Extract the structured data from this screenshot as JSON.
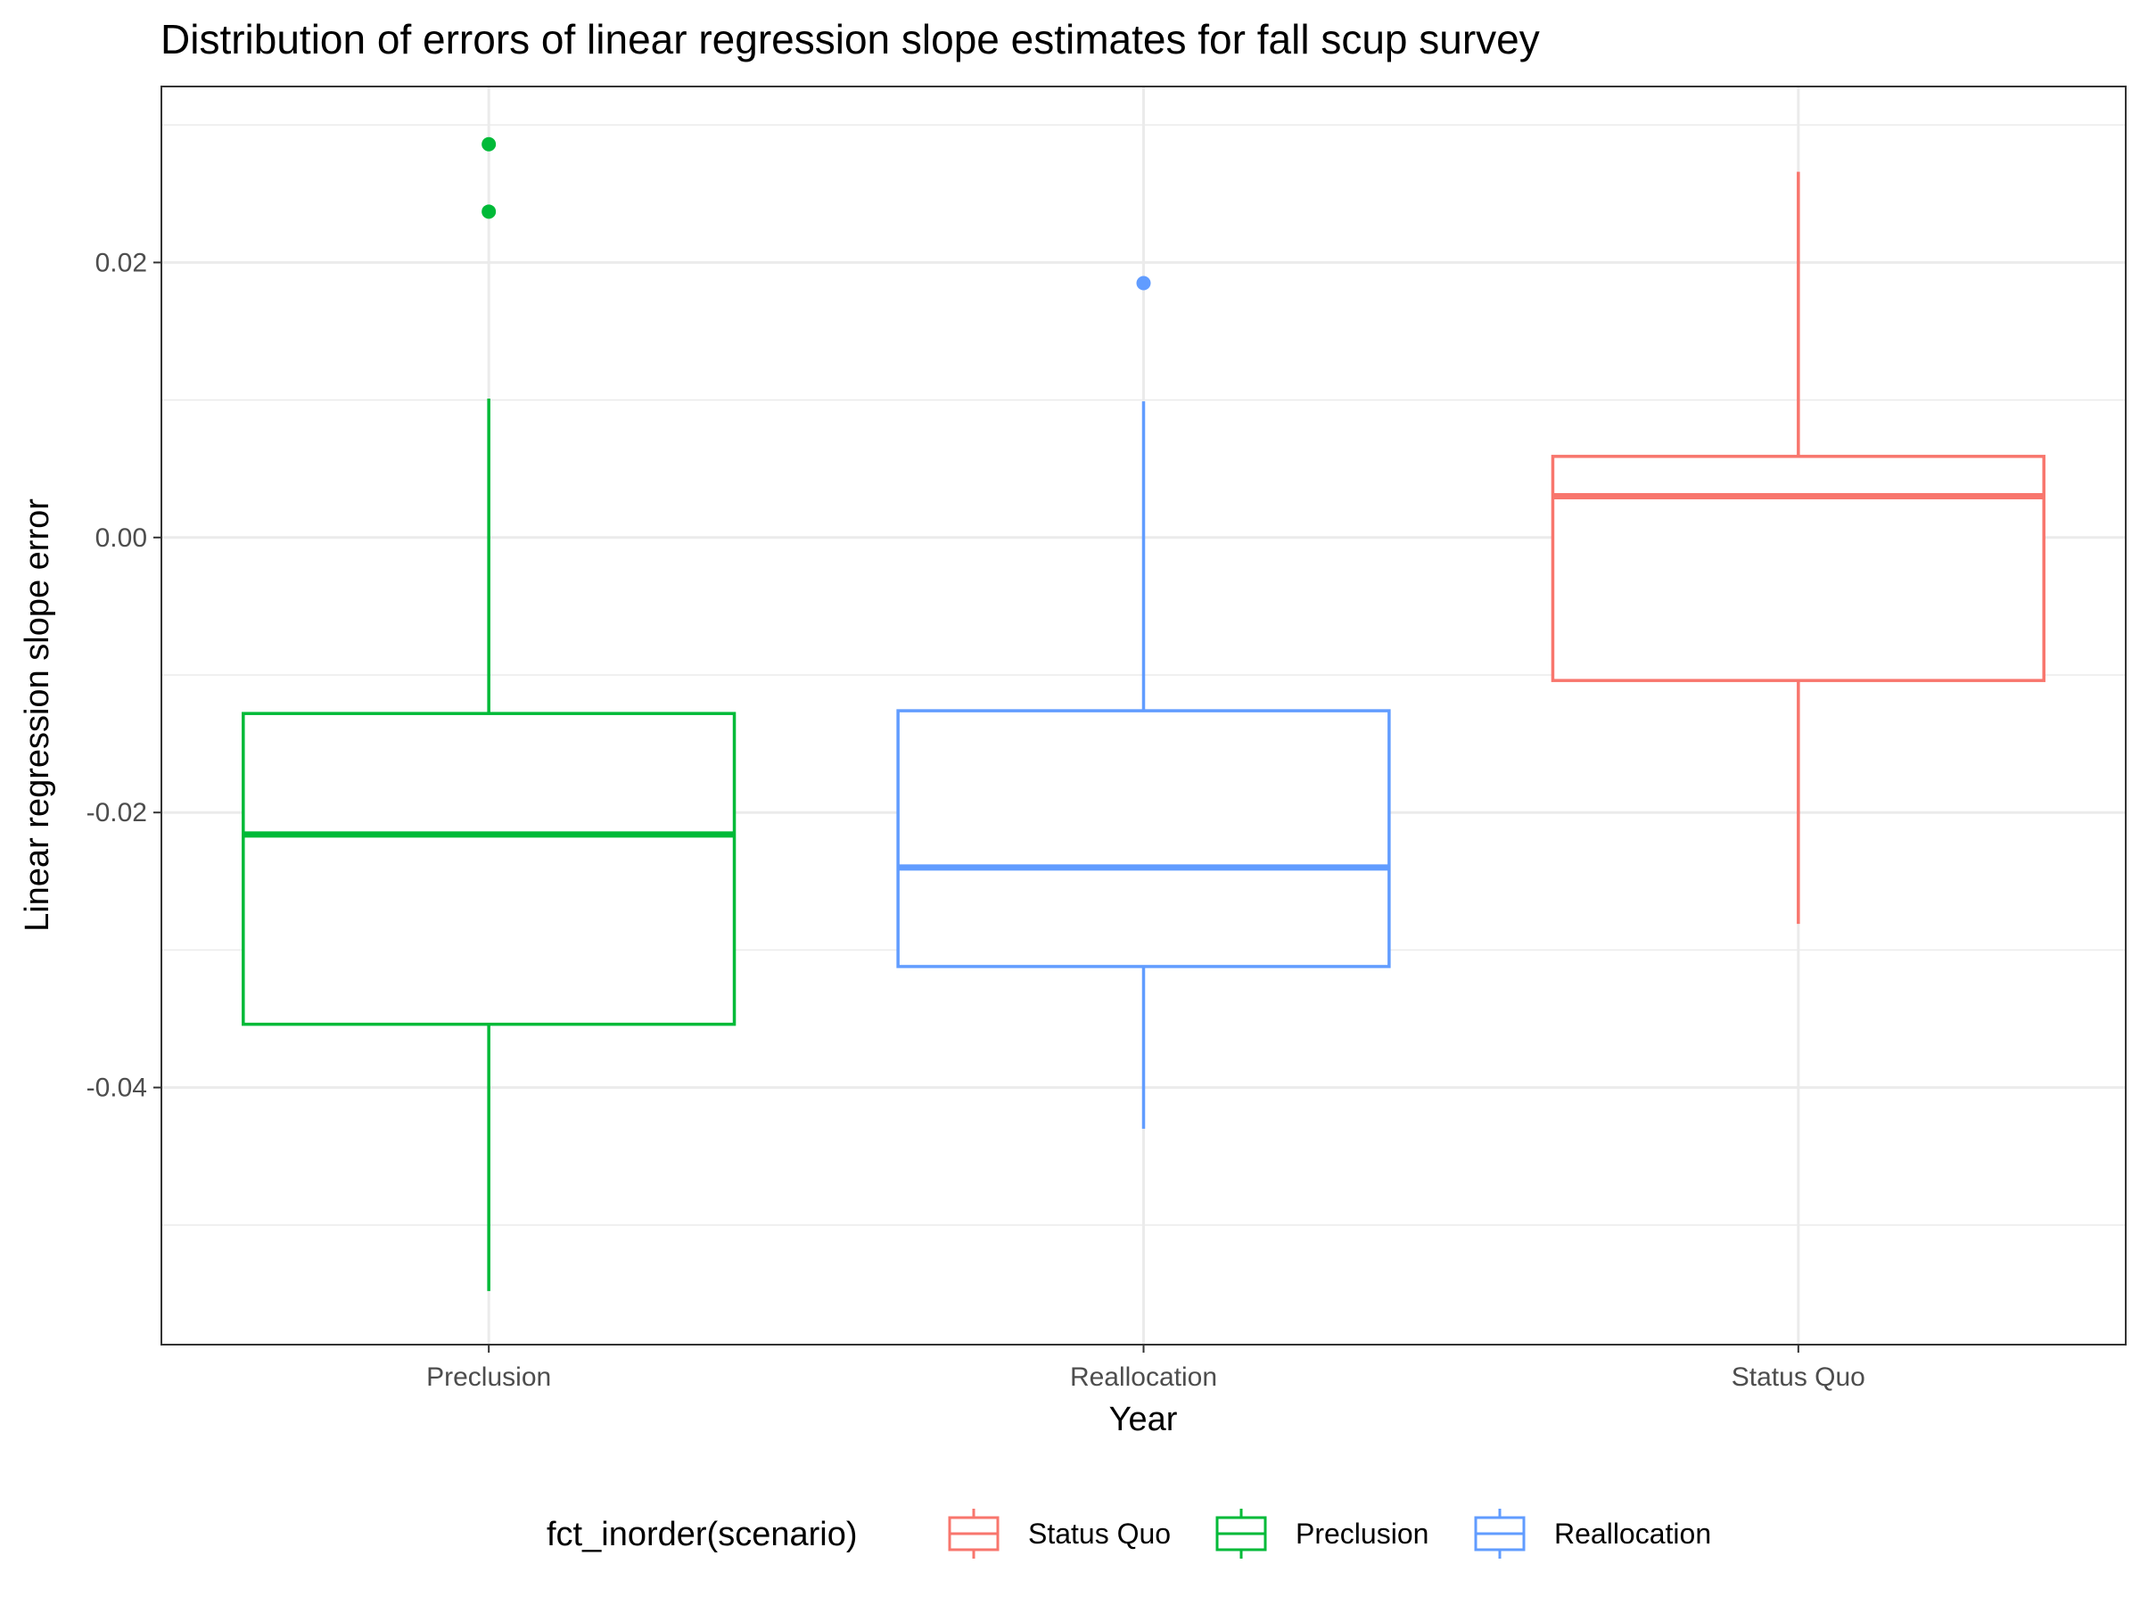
{
  "chart_data": {
    "type": "boxplot",
    "title": "Distribution of errors of linear regression slope estimates for fall scup survey",
    "xlabel": "Year",
    "ylabel": "Linear regression slope error",
    "ylim": [
      -0.0587,
      0.0328
    ],
    "y_ticks": [
      0.02,
      0.0,
      -0.02,
      -0.04
    ],
    "y_tick_labels": [
      "0.02",
      "0.00",
      "-0.02",
      "-0.04"
    ],
    "categories": [
      "Preclusion",
      "Reallocation",
      "Status Quo"
    ],
    "grid": true,
    "legend_position": "bottom",
    "legend": {
      "title": "fct_inorder(scenario)",
      "entries": [
        "Status Quo",
        "Preclusion",
        "Reallocation"
      ]
    },
    "series": [
      {
        "name": "Preclusion",
        "category": "Preclusion",
        "color": "#00BA38",
        "whisker_low": -0.0548,
        "q1": -0.0354,
        "median": -0.0216,
        "q3": -0.0128,
        "whisker_high": 0.0101,
        "outliers": [
          0.0286,
          0.0237
        ]
      },
      {
        "name": "Reallocation",
        "category": "Reallocation",
        "color": "#619CFF",
        "whisker_low": -0.043,
        "q1": -0.0312,
        "median": -0.024,
        "q3": -0.0126,
        "whisker_high": 0.0099,
        "outliers": [
          0.0185
        ]
      },
      {
        "name": "Status Quo",
        "category": "Status Quo",
        "color": "#F8766D",
        "whisker_low": -0.0281,
        "q1": -0.0104,
        "median": 0.003,
        "q3": 0.0059,
        "whisker_high": 0.0266,
        "outliers": []
      }
    ]
  }
}
